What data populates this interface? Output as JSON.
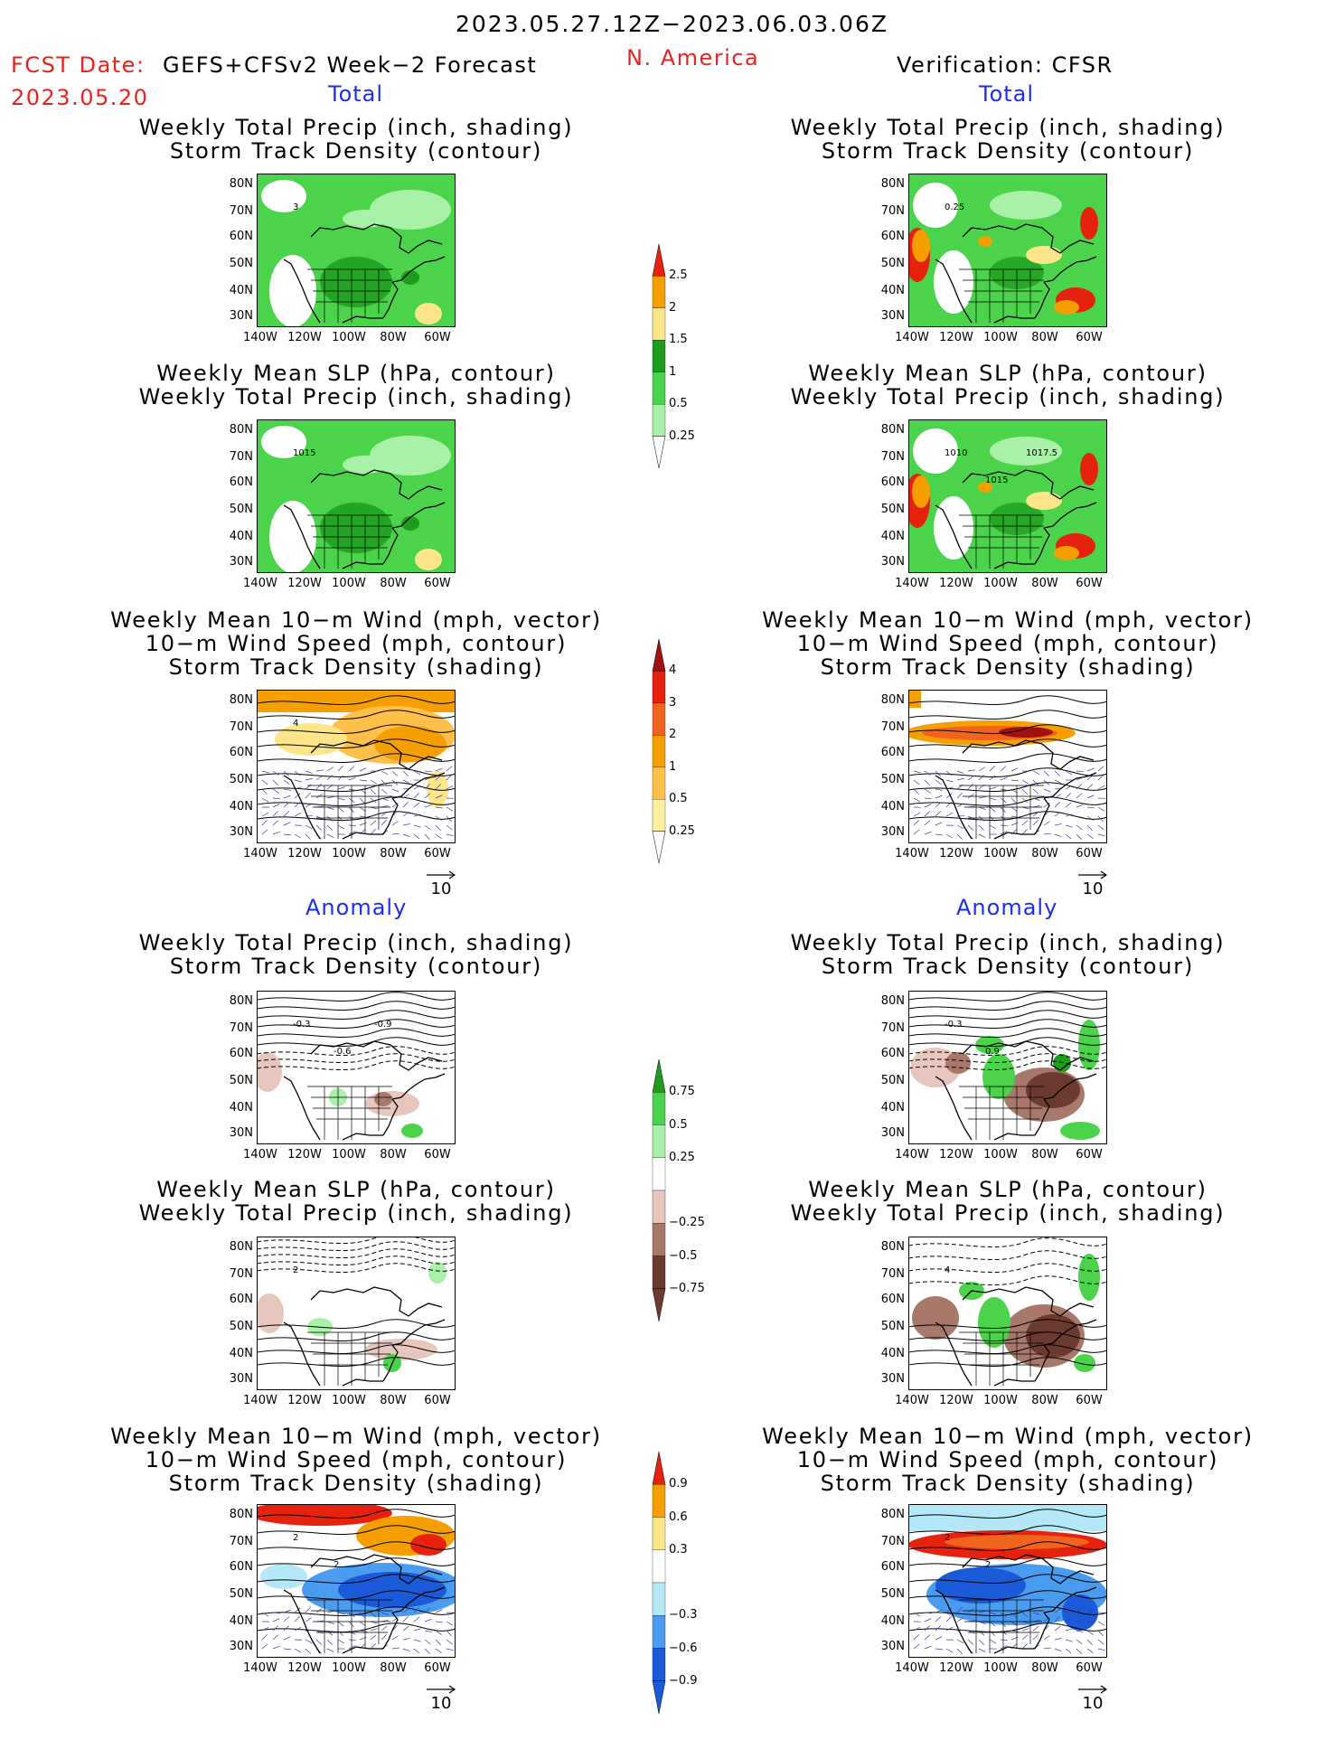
{
  "header": {
    "period": "2023.05.27.12Z−2023.06.03.06Z",
    "fcst_label": "FCST Date:",
    "fcst_date": "2023.05.20",
    "model": "GEFS+CFSv2 Week−2 Forecast",
    "region": "N. America",
    "verification": "Verification: CFSR"
  },
  "sections": {
    "total": "Total",
    "anomaly": "Anomaly"
  },
  "titles": {
    "precip_track": [
      "Weekly Total Precip (inch, shading)",
      "Storm Track Density (contour)"
    ],
    "slp_precip": [
      "Weekly Mean SLP (hPa, contour)",
      "Weekly Total Precip (inch, shading)"
    ],
    "wind_track": [
      "Weekly Mean 10−m Wind (mph, vector)",
      "10−m Wind Speed (mph, contour)",
      "Storm Track Density (shading)"
    ]
  },
  "axes": {
    "lat_ticks": [
      "80N",
      "70N",
      "60N",
      "50N",
      "40N",
      "30N"
    ],
    "lon_ticks": [
      "140W",
      "120W",
      "100W",
      "80W",
      "60W"
    ]
  },
  "reference_vector": "10",
  "contour_labels": {
    "left_precip_track": [
      "3"
    ],
    "right_precip_track": [
      "0.25"
    ],
    "left_slp": [
      "1015"
    ],
    "right_slp": [
      "1010",
      "1015",
      "1017.5"
    ],
    "left_wind": [
      "4"
    ],
    "right_anom_precip": [
      "-0.3",
      "0.9"
    ],
    "left_anom_precip": [
      "-0.3",
      "-0.6",
      "-0.9"
    ],
    "left_anom_slp": [
      "2"
    ],
    "right_anom_slp": [
      "4"
    ],
    "left_anom_wind": [
      "2",
      "2"
    ],
    "right_anom_wind": [
      "2",
      "2"
    ]
  },
  "colorbars": {
    "precip_total": {
      "labels": [
        "2.5",
        "2",
        "1.5",
        "1",
        "0.5",
        "0.25"
      ],
      "colors": [
        "#e6220f",
        "#f5a000",
        "#fde68a",
        "#1e9c1e",
        "#4bd44b",
        "#a9f0a9"
      ]
    },
    "track_total": {
      "labels": [
        "4",
        "3",
        "2",
        "1",
        "0.5",
        "0.25"
      ],
      "colors": [
        "#a01010",
        "#e6220f",
        "#f0641e",
        "#f5a000",
        "#fdc04a",
        "#fff0a0"
      ]
    },
    "precip_anom": {
      "labels": [
        "0.75",
        "0.5",
        "0.25",
        "−0.25",
        "−0.5",
        "−0.75"
      ],
      "colors": [
        "#1e9c1e",
        "#4bd44b",
        "#a9f0a9",
        "#ffffff",
        "#e7c6bd",
        "#a8786b",
        "#6a3b2e"
      ]
    },
    "track_anom": {
      "labels": [
        "0.9",
        "0.6",
        "0.3",
        "−0.3",
        "−0.6",
        "−0.9"
      ],
      "colors": [
        "#e6220f",
        "#f5a000",
        "#fde68a",
        "#ffffff",
        "#b4e8f8",
        "#4a9cf0",
        "#1a5ad8"
      ]
    }
  },
  "palette": {
    "green_light": "#a9f0a9",
    "green_mid": "#4bd44b",
    "green_dark": "#1e9c1e",
    "yellow": "#fde68a",
    "orange": "#f5a000",
    "red": "#e6220f",
    "brown_light": "#e7c6bd",
    "brown_mid": "#a8786b",
    "brown_dark": "#6a3b2e",
    "blue_light": "#b4e8f8",
    "blue_mid": "#4a9cf0",
    "blue_dark": "#1a5ad8",
    "title_red": "#e8231f",
    "title_blue": "#1c2df0"
  }
}
